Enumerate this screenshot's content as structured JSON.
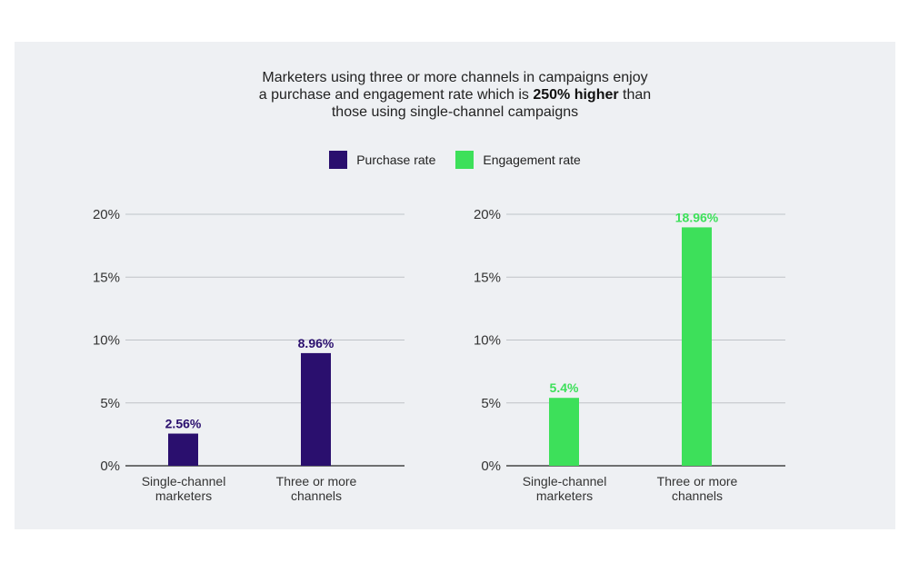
{
  "title": {
    "line1": "Marketers using three or more channels in campaigns enjoy",
    "line2_pre": "a purchase and engagement rate which is ",
    "line2_bold": "250% higher",
    "line2_post": " than",
    "line3": "those using single-channel campaigns"
  },
  "legend": [
    {
      "label": "Purchase rate",
      "color": "#2a0f6e"
    },
    {
      "label": "Engagement rate",
      "color": "#3de05a"
    }
  ],
  "chart_data": [
    {
      "type": "bar",
      "categories": [
        "Single-channel marketers",
        "Three or more channels"
      ],
      "category_lines": [
        [
          "Single-channel",
          "marketers"
        ],
        [
          "Three or more",
          "channels"
        ]
      ],
      "values": [
        2.56,
        8.96
      ],
      "value_labels": [
        "2.56%",
        "8.96%"
      ],
      "series_name": "Purchase rate",
      "color": "#2a0f6e",
      "label_color": "#2a0f6e",
      "yticks": [
        "0%",
        "5%",
        "10%",
        "15%",
        "20%"
      ],
      "ylim": [
        0,
        20
      ],
      "grid": true
    },
    {
      "type": "bar",
      "categories": [
        "Single-channel marketers",
        "Three or more channels"
      ],
      "category_lines": [
        [
          "Single-channel",
          "marketers"
        ],
        [
          "Three or more",
          "channels"
        ]
      ],
      "values": [
        5.4,
        18.96
      ],
      "value_labels": [
        "5.4%",
        "18.96%"
      ],
      "series_name": "Engagement rate",
      "color": "#3de05a",
      "label_color": "#3de05a",
      "yticks": [
        "0%",
        "5%",
        "10%",
        "15%",
        "20%"
      ],
      "ylim": [
        0,
        20
      ],
      "grid": true
    }
  ]
}
